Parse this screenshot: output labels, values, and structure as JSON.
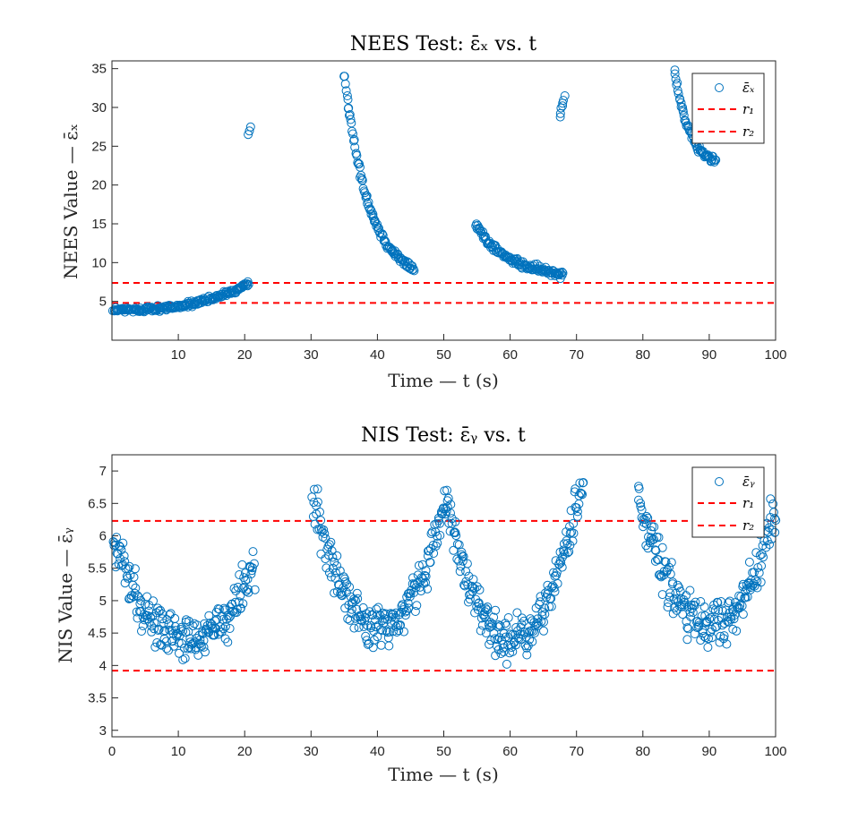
{
  "chart_data": [
    {
      "type": "scatter",
      "title": "NEES Test: ε̄ₓ vs. t",
      "xlabel": "Time — t (s)",
      "ylabel": "NEES Value — ε̄ₓ",
      "xlim": [
        0,
        100
      ],
      "ylim": [
        0,
        36
      ],
      "yticks": [
        5,
        10,
        15,
        20,
        25,
        30,
        35
      ],
      "xticks": [
        10,
        20,
        30,
        40,
        50,
        60,
        70,
        80,
        90,
        100
      ],
      "grid": false,
      "legend_position": "top-right",
      "legend": [
        "ε̄ₓ",
        "r₁",
        "r₂"
      ],
      "colors": {
        "points": "#0072BD",
        "bounds": "#FF0000"
      },
      "bounds": {
        "r1": 7.38,
        "r2": 4.8
      },
      "segments": [
        {
          "x": [
            0.2,
            20.6
          ],
          "y": [
            3.9,
            7.2
          ],
          "curve": "rising",
          "noise": 0.35
        },
        {
          "x": [
            20.6,
            20.9
          ],
          "y": [
            26.5,
            27.6
          ],
          "curve": "linear",
          "noise": 0.2
        },
        {
          "x": [
            35.0,
            45.5
          ],
          "y": [
            34.5,
            9.2
          ],
          "curve": "decay",
          "noise": 0.5
        },
        {
          "x": [
            54.8,
            68.0
          ],
          "y": [
            15.0,
            8.6
          ],
          "curve": "decay",
          "noise": 0.5
        },
        {
          "x": [
            67.5,
            68.2
          ],
          "y": [
            28.8,
            31.5
          ],
          "curve": "linear",
          "noise": 0.3
        },
        {
          "x": [
            84.8,
            91.0
          ],
          "y": [
            35.0,
            23.0
          ],
          "curve": "decay",
          "noise": 0.5
        }
      ]
    },
    {
      "type": "scatter",
      "title": "NIS Test: ε̄ᵧ vs. t",
      "xlabel": "Time — t (s)",
      "ylabel": "NIS Value — ε̄ᵧ",
      "xlim": [
        0,
        100
      ],
      "ylim": [
        2.9,
        7.25
      ],
      "yticks": [
        3,
        3.5,
        4,
        4.5,
        5,
        5.5,
        6,
        6.5,
        7
      ],
      "xticks": [
        0,
        10,
        20,
        30,
        40,
        50,
        60,
        70,
        80,
        90,
        100
      ],
      "grid": false,
      "legend_position": "top-right",
      "legend": [
        "ε̄ᵧ",
        "r₁",
        "r₂"
      ],
      "colors": {
        "points": "#0072BD",
        "bounds": "#FF0000"
      },
      "bounds": {
        "r1": 6.23,
        "r2": 3.92
      },
      "segments": [
        {
          "x": [
            0.2,
            21.5
          ],
          "y": [
            5.9,
            5.5
          ],
          "curve": "valley",
          "min": 4.4,
          "noise": 0.35
        },
        {
          "x": [
            30.2,
            50.5
          ],
          "y": [
            6.6,
            6.5
          ],
          "curve": "valley",
          "min": 4.6,
          "noise": 0.35
        },
        {
          "x": [
            50.5,
            71.0
          ],
          "y": [
            6.4,
            6.9
          ],
          "curve": "valley",
          "min": 4.4,
          "noise": 0.35
        },
        {
          "x": [
            79.3,
            100.0
          ],
          "y": [
            6.6,
            6.4
          ],
          "curve": "valley",
          "min": 4.6,
          "noise": 0.35
        }
      ]
    }
  ]
}
